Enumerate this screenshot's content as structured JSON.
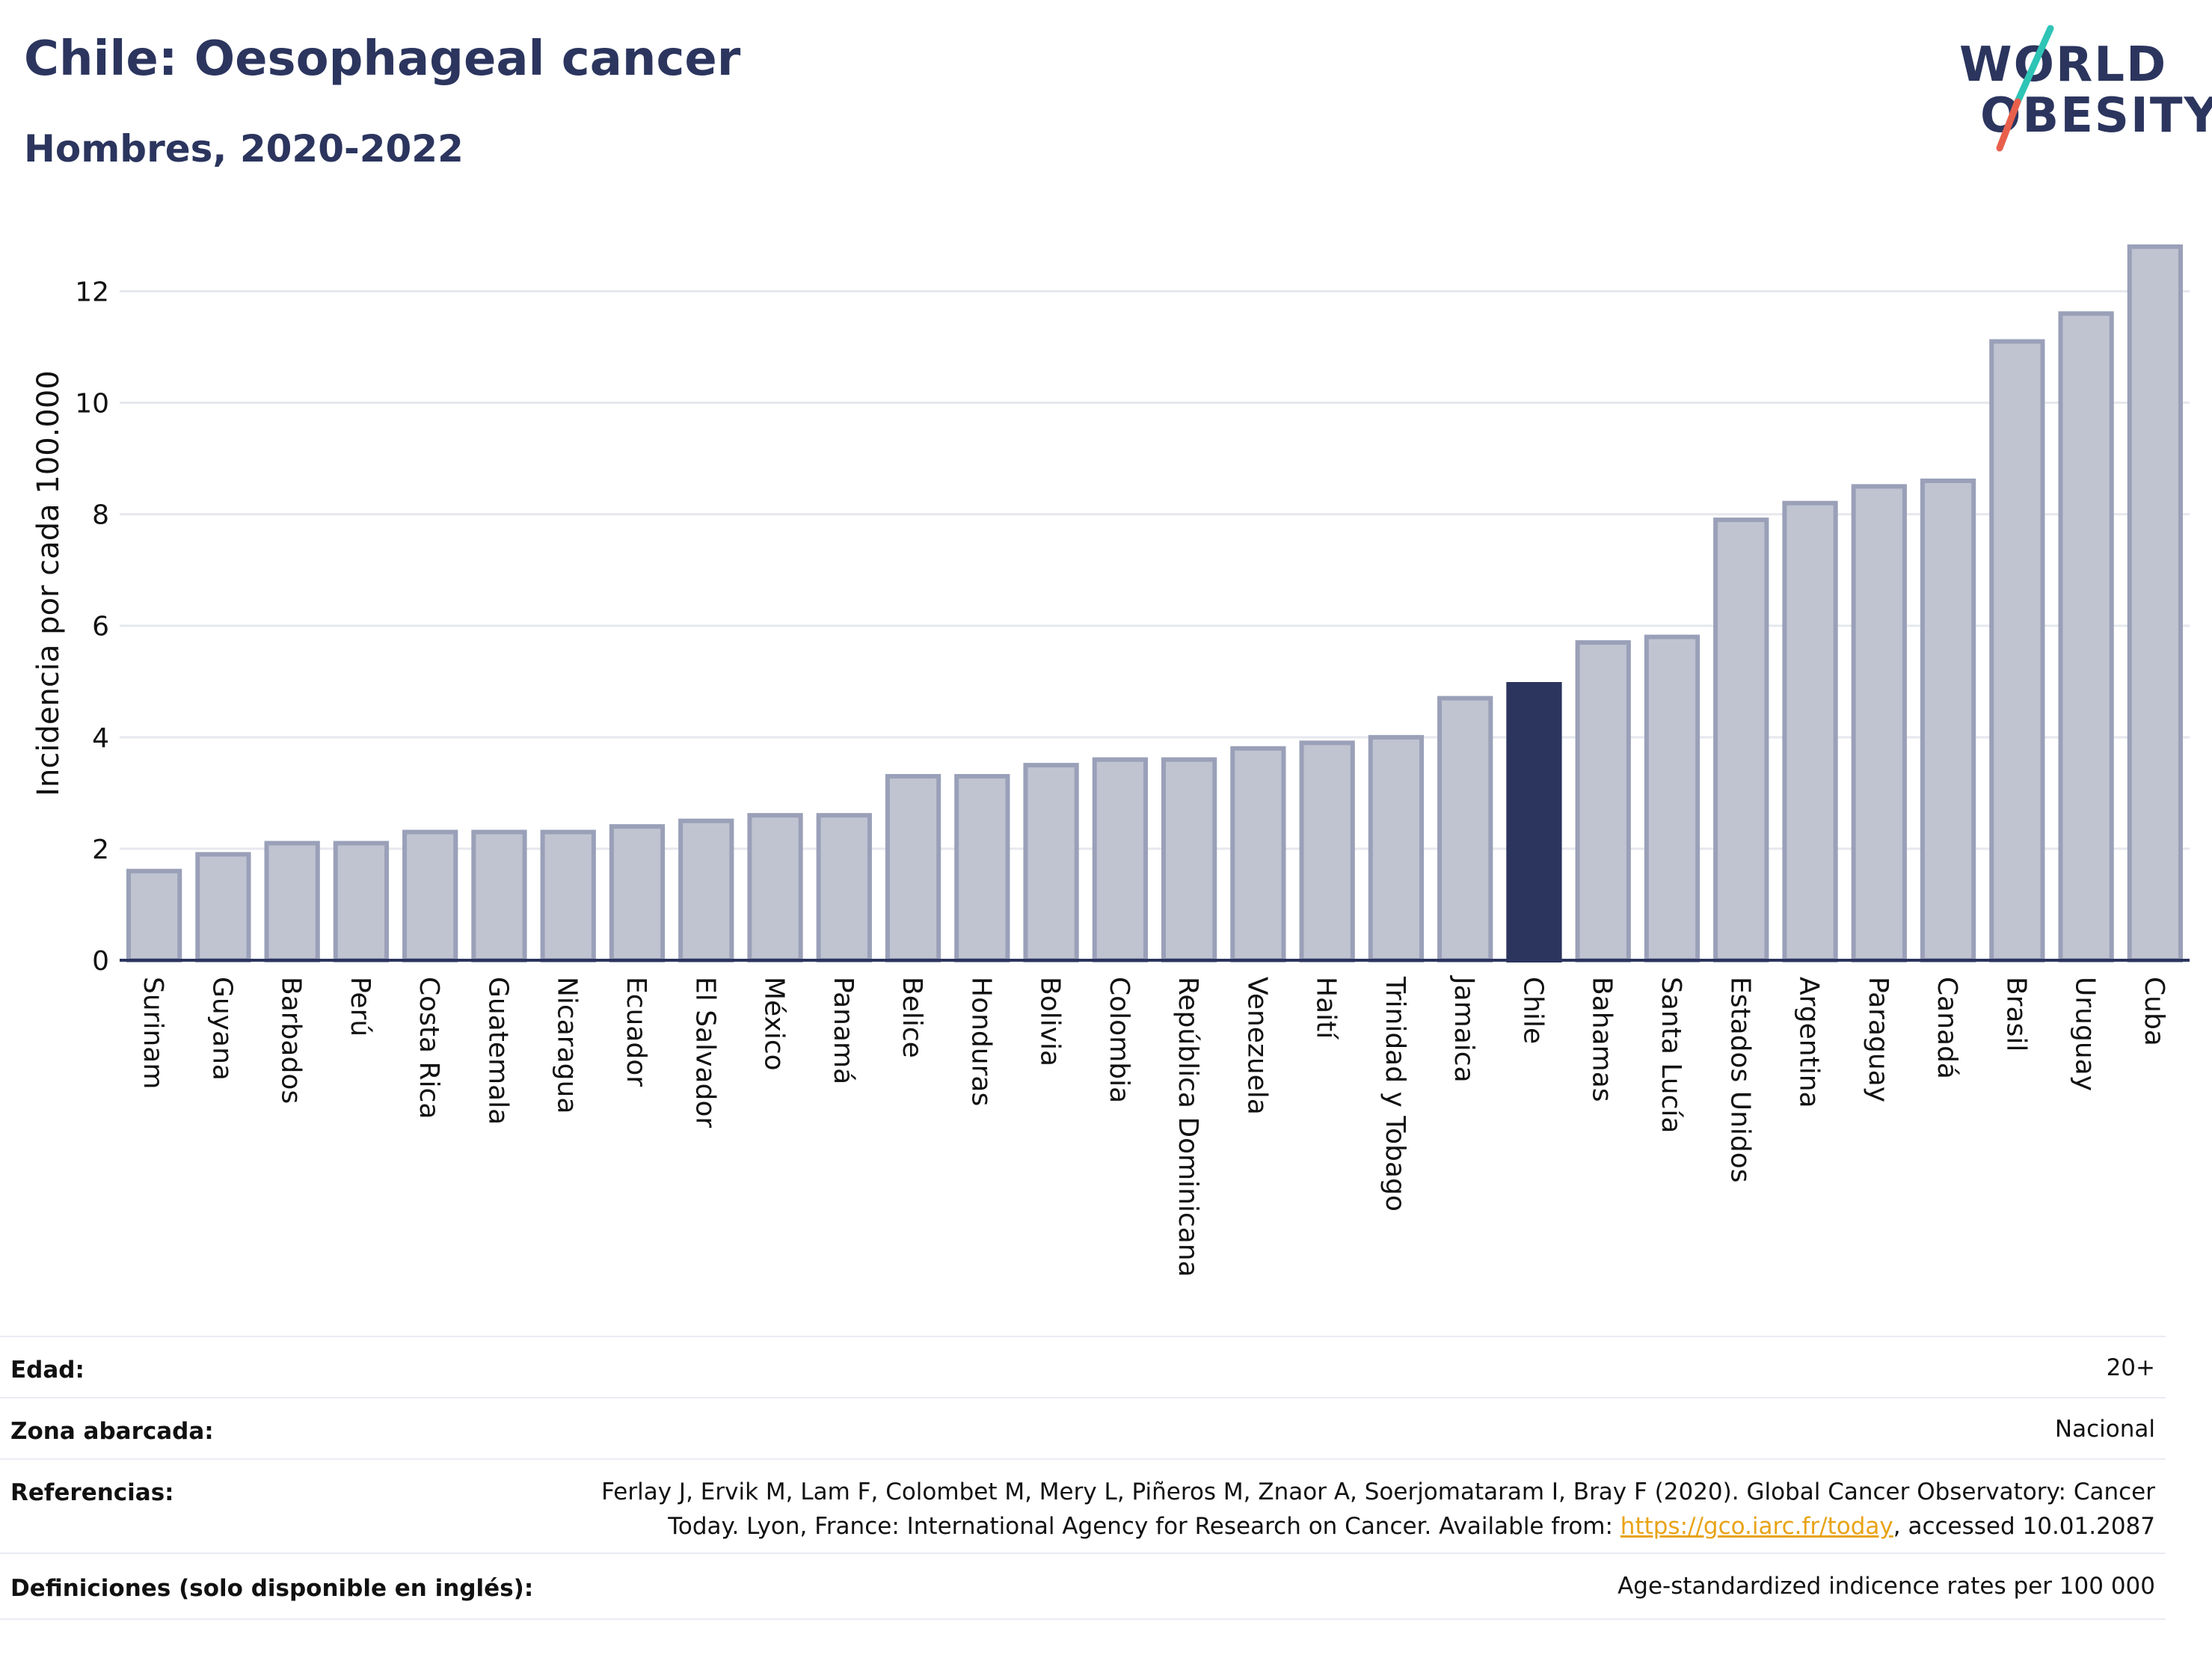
{
  "header": {
    "title": "Chile: Oesophageal cancer",
    "subtitle": "Hombres, 2020-2022"
  },
  "logo": {
    "line1": "WORLD",
    "line2": "OBESITY",
    "accent_colors": [
      "#2ec4b6",
      "#e8604c"
    ]
  },
  "colors": {
    "bar": "#c0c4d1",
    "bar_stroke": "#9aa0b8",
    "highlight": "#2b355e",
    "grid": "#e6e8ee",
    "axis": "#2b355e"
  },
  "chart_data": {
    "type": "bar",
    "ylabel": "Incidencia por cada 100.000",
    "ylim": [
      0,
      13.2
    ],
    "yticks": [
      0,
      2,
      4,
      6,
      8,
      10,
      12
    ],
    "grid": true,
    "highlight": "Chile",
    "categories": [
      "Surinam",
      "Guyana",
      "Barbados",
      "Perú",
      "Costa Rica",
      "Guatemala",
      "Nicaragua",
      "Ecuador",
      "El Salvador",
      "México",
      "Panamá",
      "Belice",
      "Honduras",
      "Bolivia",
      "Colombia",
      "República Dominicana",
      "Venezuela",
      "Haití",
      "Trinidad y Tobago",
      "Jamaica",
      "Chile",
      "Bahamas",
      "Santa Lucía",
      "Estados Unidos",
      "Argentina",
      "Paraguay",
      "Canadá",
      "Brasil",
      "Uruguay",
      "Cuba"
    ],
    "values": [
      1.6,
      1.9,
      2.1,
      2.1,
      2.3,
      2.3,
      2.3,
      2.4,
      2.5,
      2.6,
      2.6,
      3.3,
      3.3,
      3.5,
      3.6,
      3.6,
      3.8,
      3.9,
      4.0,
      4.7,
      4.95,
      5.7,
      5.8,
      7.9,
      8.2,
      8.5,
      8.6,
      11.1,
      11.6,
      12.8
    ]
  },
  "meta": {
    "age_label": "Edad:",
    "age_value": "20+",
    "zone_label": "Zona abarcada:",
    "zone_value": "Nacional",
    "ref_label": "Referencias:",
    "ref_line1": "Ferlay J, Ervik M, Lam F, Colombet M, Mery L, Piñeros M, Znaor A, Soerjomataram I, Bray F (2020). Global Cancer Observatory: Cancer",
    "ref_line2_pre": "Today. Lyon, France: International Agency for Research on Cancer. Available from: ",
    "ref_link": "https://gco.iarc.fr/today",
    "ref_line2_post": ", accessed 10.01.2087",
    "def_label": "Definiciones (solo disponible en inglés):",
    "def_value": "Age-standardized indicence rates per 100 000"
  }
}
